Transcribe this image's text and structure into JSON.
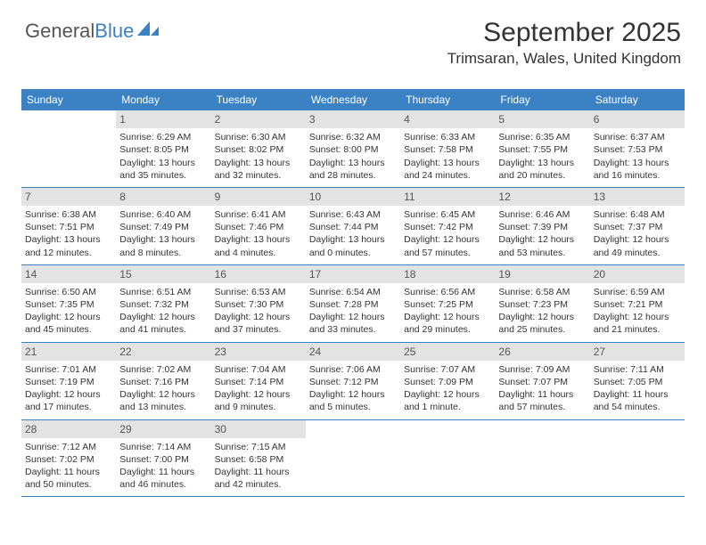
{
  "logo": {
    "text1": "General",
    "text2": "Blue"
  },
  "header": {
    "month_title": "September 2025",
    "location": "Trimsaran, Wales, United Kingdom"
  },
  "colors": {
    "header_bar": "#3b82c4",
    "day_number_bg": "#e3e3e3",
    "text": "#333333",
    "background": "#ffffff"
  },
  "calendar": {
    "weekdays": [
      "Sunday",
      "Monday",
      "Tuesday",
      "Wednesday",
      "Thursday",
      "Friday",
      "Saturday"
    ],
    "weeks": [
      [
        {
          "empty": true
        },
        {
          "n": "1",
          "sunrise": "Sunrise: 6:29 AM",
          "sunset": "Sunset: 8:05 PM",
          "daylight": "Daylight: 13 hours and 35 minutes."
        },
        {
          "n": "2",
          "sunrise": "Sunrise: 6:30 AM",
          "sunset": "Sunset: 8:02 PM",
          "daylight": "Daylight: 13 hours and 32 minutes."
        },
        {
          "n": "3",
          "sunrise": "Sunrise: 6:32 AM",
          "sunset": "Sunset: 8:00 PM",
          "daylight": "Daylight: 13 hours and 28 minutes."
        },
        {
          "n": "4",
          "sunrise": "Sunrise: 6:33 AM",
          "sunset": "Sunset: 7:58 PM",
          "daylight": "Daylight: 13 hours and 24 minutes."
        },
        {
          "n": "5",
          "sunrise": "Sunrise: 6:35 AM",
          "sunset": "Sunset: 7:55 PM",
          "daylight": "Daylight: 13 hours and 20 minutes."
        },
        {
          "n": "6",
          "sunrise": "Sunrise: 6:37 AM",
          "sunset": "Sunset: 7:53 PM",
          "daylight": "Daylight: 13 hours and 16 minutes."
        }
      ],
      [
        {
          "n": "7",
          "sunrise": "Sunrise: 6:38 AM",
          "sunset": "Sunset: 7:51 PM",
          "daylight": "Daylight: 13 hours and 12 minutes."
        },
        {
          "n": "8",
          "sunrise": "Sunrise: 6:40 AM",
          "sunset": "Sunset: 7:49 PM",
          "daylight": "Daylight: 13 hours and 8 minutes."
        },
        {
          "n": "9",
          "sunrise": "Sunrise: 6:41 AM",
          "sunset": "Sunset: 7:46 PM",
          "daylight": "Daylight: 13 hours and 4 minutes."
        },
        {
          "n": "10",
          "sunrise": "Sunrise: 6:43 AM",
          "sunset": "Sunset: 7:44 PM",
          "daylight": "Daylight: 13 hours and 0 minutes."
        },
        {
          "n": "11",
          "sunrise": "Sunrise: 6:45 AM",
          "sunset": "Sunset: 7:42 PM",
          "daylight": "Daylight: 12 hours and 57 minutes."
        },
        {
          "n": "12",
          "sunrise": "Sunrise: 6:46 AM",
          "sunset": "Sunset: 7:39 PM",
          "daylight": "Daylight: 12 hours and 53 minutes."
        },
        {
          "n": "13",
          "sunrise": "Sunrise: 6:48 AM",
          "sunset": "Sunset: 7:37 PM",
          "daylight": "Daylight: 12 hours and 49 minutes."
        }
      ],
      [
        {
          "n": "14",
          "sunrise": "Sunrise: 6:50 AM",
          "sunset": "Sunset: 7:35 PM",
          "daylight": "Daylight: 12 hours and 45 minutes."
        },
        {
          "n": "15",
          "sunrise": "Sunrise: 6:51 AM",
          "sunset": "Sunset: 7:32 PM",
          "daylight": "Daylight: 12 hours and 41 minutes."
        },
        {
          "n": "16",
          "sunrise": "Sunrise: 6:53 AM",
          "sunset": "Sunset: 7:30 PM",
          "daylight": "Daylight: 12 hours and 37 minutes."
        },
        {
          "n": "17",
          "sunrise": "Sunrise: 6:54 AM",
          "sunset": "Sunset: 7:28 PM",
          "daylight": "Daylight: 12 hours and 33 minutes."
        },
        {
          "n": "18",
          "sunrise": "Sunrise: 6:56 AM",
          "sunset": "Sunset: 7:25 PM",
          "daylight": "Daylight: 12 hours and 29 minutes."
        },
        {
          "n": "19",
          "sunrise": "Sunrise: 6:58 AM",
          "sunset": "Sunset: 7:23 PM",
          "daylight": "Daylight: 12 hours and 25 minutes."
        },
        {
          "n": "20",
          "sunrise": "Sunrise: 6:59 AM",
          "sunset": "Sunset: 7:21 PM",
          "daylight": "Daylight: 12 hours and 21 minutes."
        }
      ],
      [
        {
          "n": "21",
          "sunrise": "Sunrise: 7:01 AM",
          "sunset": "Sunset: 7:19 PM",
          "daylight": "Daylight: 12 hours and 17 minutes."
        },
        {
          "n": "22",
          "sunrise": "Sunrise: 7:02 AM",
          "sunset": "Sunset: 7:16 PM",
          "daylight": "Daylight: 12 hours and 13 minutes."
        },
        {
          "n": "23",
          "sunrise": "Sunrise: 7:04 AM",
          "sunset": "Sunset: 7:14 PM",
          "daylight": "Daylight: 12 hours and 9 minutes."
        },
        {
          "n": "24",
          "sunrise": "Sunrise: 7:06 AM",
          "sunset": "Sunset: 7:12 PM",
          "daylight": "Daylight: 12 hours and 5 minutes."
        },
        {
          "n": "25",
          "sunrise": "Sunrise: 7:07 AM",
          "sunset": "Sunset: 7:09 PM",
          "daylight": "Daylight: 12 hours and 1 minute."
        },
        {
          "n": "26",
          "sunrise": "Sunrise: 7:09 AM",
          "sunset": "Sunset: 7:07 PM",
          "daylight": "Daylight: 11 hours and 57 minutes."
        },
        {
          "n": "27",
          "sunrise": "Sunrise: 7:11 AM",
          "sunset": "Sunset: 7:05 PM",
          "daylight": "Daylight: 11 hours and 54 minutes."
        }
      ],
      [
        {
          "n": "28",
          "sunrise": "Sunrise: 7:12 AM",
          "sunset": "Sunset: 7:02 PM",
          "daylight": "Daylight: 11 hours and 50 minutes."
        },
        {
          "n": "29",
          "sunrise": "Sunrise: 7:14 AM",
          "sunset": "Sunset: 7:00 PM",
          "daylight": "Daylight: 11 hours and 46 minutes."
        },
        {
          "n": "30",
          "sunrise": "Sunrise: 7:15 AM",
          "sunset": "Sunset: 6:58 PM",
          "daylight": "Daylight: 11 hours and 42 minutes."
        },
        {
          "empty": true
        },
        {
          "empty": true
        },
        {
          "empty": true
        },
        {
          "empty": true
        }
      ]
    ]
  }
}
